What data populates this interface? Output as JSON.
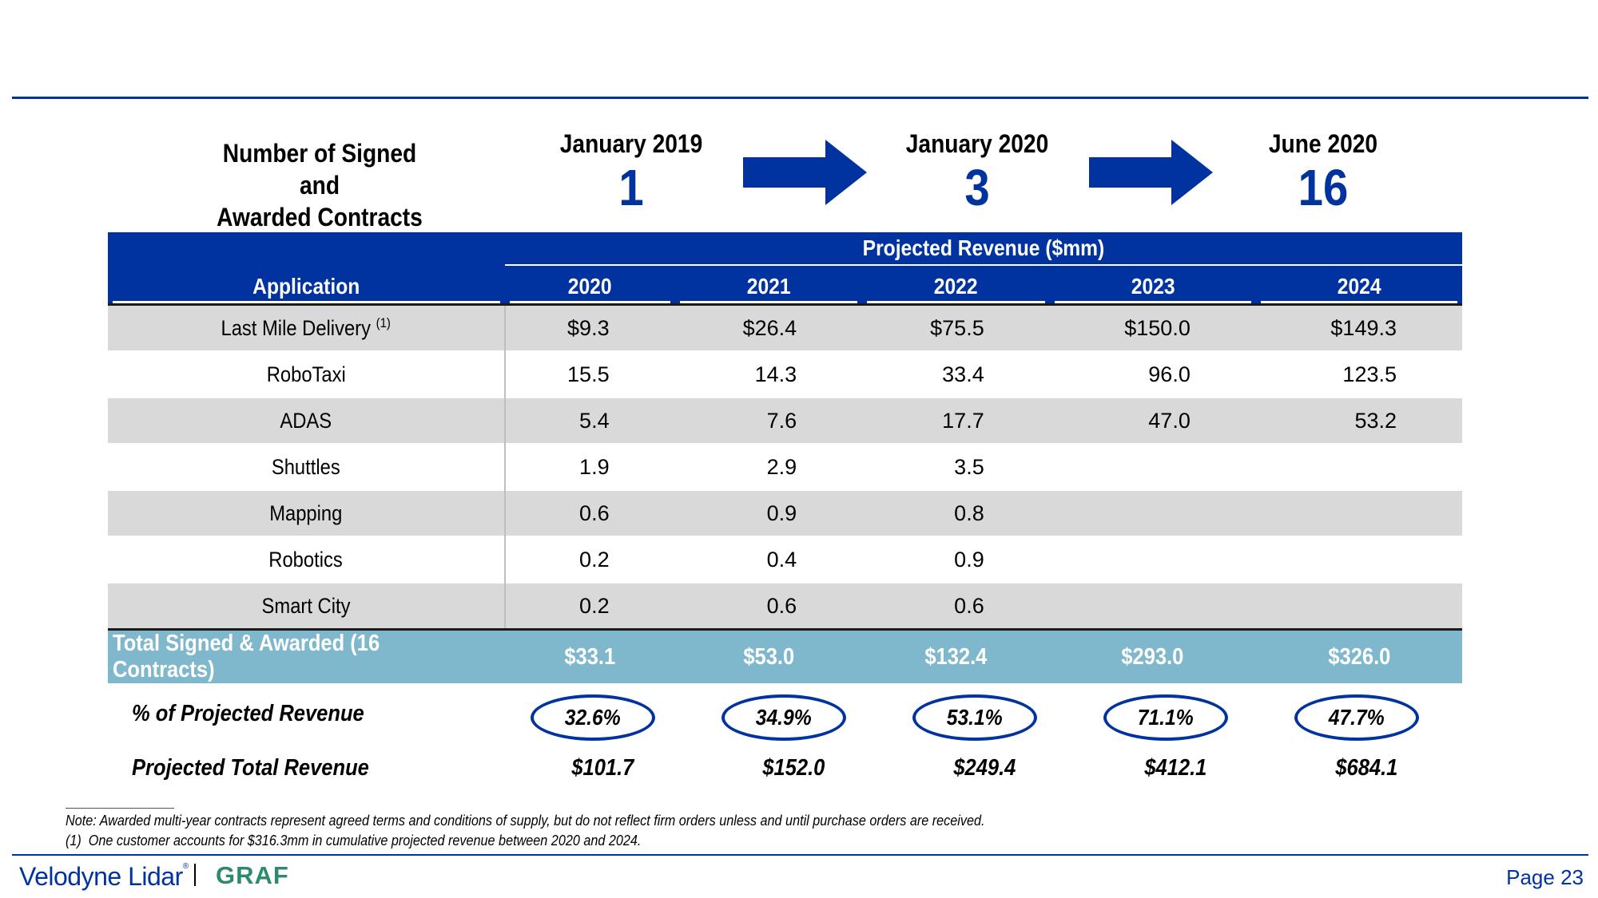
{
  "header": {
    "contracts_label_line1": "Number of Signed and",
    "contracts_label_line2": "Awarded Contracts",
    "milestones": [
      {
        "date": "January 2019",
        "count": "1"
      },
      {
        "date": "January 2020",
        "count": "3"
      },
      {
        "date": "June 2020",
        "count": "16"
      }
    ]
  },
  "table": {
    "group_header": "Projected Revenue ($mm)",
    "app_header": "Application",
    "years": [
      "2020",
      "2021",
      "2022",
      "2023",
      "2024"
    ],
    "rows": [
      {
        "app": "Last Mile Delivery",
        "footnote": "(1)",
        "values": [
          "$9.3",
          "$26.4",
          "$75.5",
          "$150.0",
          "$149.3"
        ]
      },
      {
        "app": "RoboTaxi",
        "values": [
          "15.5",
          "14.3",
          "33.4",
          "96.0",
          "123.5"
        ]
      },
      {
        "app": "ADAS",
        "values": [
          "5.4",
          "7.6",
          "17.7",
          "47.0",
          "53.2"
        ]
      },
      {
        "app": "Shuttles",
        "values": [
          "1.9",
          "2.9",
          "3.5",
          "",
          ""
        ]
      },
      {
        "app": "Mapping",
        "values": [
          "0.6",
          "0.9",
          "0.8",
          "",
          ""
        ]
      },
      {
        "app": "Robotics",
        "values": [
          "0.2",
          "0.4",
          "0.9",
          "",
          ""
        ]
      },
      {
        "app": "Smart City",
        "values": [
          "0.2",
          "0.6",
          "0.6",
          "",
          ""
        ]
      }
    ],
    "total": {
      "label": "Total Signed & Awarded (16 Contracts)",
      "values": [
        "$33.1",
        "$53.0",
        "$132.4",
        "$293.0",
        "$326.0"
      ]
    }
  },
  "pct_of_projected": {
    "label": "% of Projected Revenue",
    "values": [
      "32.6%",
      "34.9%",
      "53.1%",
      "71.1%",
      "47.7%"
    ]
  },
  "projected_total": {
    "label": "Projected Total Revenue",
    "values": [
      "$101.7",
      "$152.0",
      "$249.4",
      "$412.1",
      "$684.1"
    ]
  },
  "notes": {
    "note": "Note: Awarded multi-year contracts represent agreed terms and conditions of supply, but do not reflect firm orders unless and until purchase orders are received.",
    "footnote_marker": "(1)",
    "footnote_text": "One customer accounts for $316.3mm in cumulative projected revenue between 2020 and 2024."
  },
  "footer": {
    "logo_text": "Velodyne Lidar",
    "logo_mark": "®",
    "partner": "GRAF",
    "page": "Page 23"
  },
  "colors": {
    "brand_blue": "#0033a0",
    "total_row": "#7fb8cc",
    "shade_row": "#d9d9d9",
    "graf_green": "#2d8a6e"
  }
}
